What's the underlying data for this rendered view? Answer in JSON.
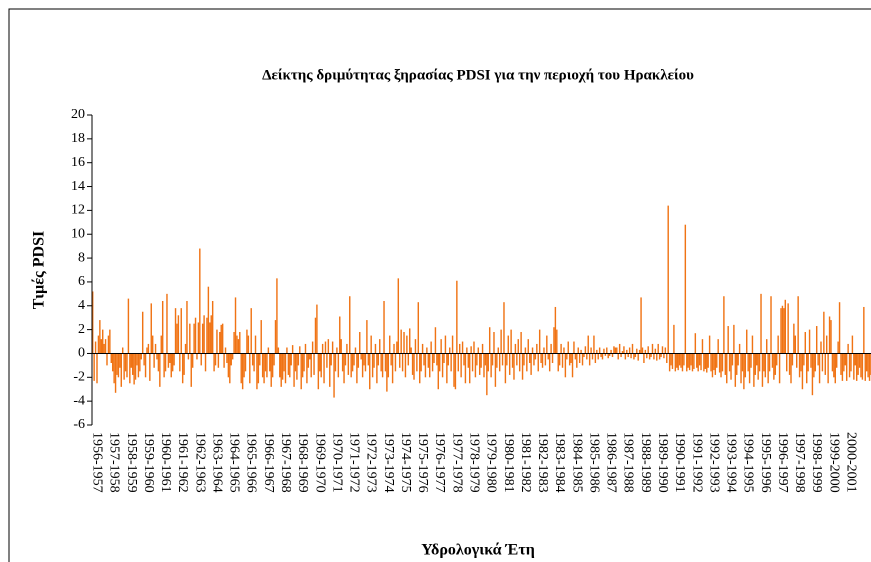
{
  "chart_data": {
    "type": "bar",
    "title": "Δείκτης δριμύτητας ξηρασίας PDSI για την περιοχή του Ηρακλείου",
    "y_label": "Τιμές PDSI",
    "x_label": "Υδρολογικά Έτη",
    "color": "#f07314",
    "ylim": [
      -6,
      20
    ],
    "yticks": [
      -6,
      -4,
      -2,
      0,
      2,
      4,
      6,
      8,
      10,
      12,
      14,
      16,
      18,
      20
    ],
    "categories": [
      "1956-1957",
      null,
      null,
      null,
      null,
      null,
      null,
      null,
      null,
      null,
      null,
      null,
      "1957-1958",
      null,
      null,
      null,
      null,
      null,
      null,
      null,
      null,
      null,
      null,
      null,
      "1958-1959",
      null,
      null,
      null,
      null,
      null,
      null,
      null,
      null,
      null,
      null,
      null,
      "1959-1960",
      null,
      null,
      null,
      null,
      null,
      null,
      null,
      null,
      null,
      null,
      null,
      "1960-1961",
      null,
      null,
      null,
      null,
      null,
      null,
      null,
      null,
      null,
      null,
      null,
      "1961-1962",
      null,
      null,
      null,
      null,
      null,
      null,
      null,
      null,
      null,
      null,
      null,
      "1962-1963",
      null,
      null,
      null,
      null,
      null,
      null,
      null,
      null,
      null,
      null,
      null,
      "1963-1964",
      null,
      null,
      null,
      null,
      null,
      null,
      null,
      null,
      null,
      null,
      null,
      "1964-1965",
      null,
      null,
      null,
      null,
      null,
      null,
      null,
      null,
      null,
      null,
      null,
      "1965-1966",
      null,
      null,
      null,
      null,
      null,
      null,
      null,
      null,
      null,
      null,
      null,
      "1966-1967",
      null,
      null,
      null,
      null,
      null,
      null,
      null,
      null,
      null,
      null,
      null,
      "1967-1968",
      null,
      null,
      null,
      null,
      null,
      null,
      null,
      null,
      null,
      null,
      null,
      "1968-1969",
      null,
      null,
      null,
      null,
      null,
      null,
      null,
      null,
      null,
      null,
      null,
      "1969-1970",
      null,
      null,
      null,
      null,
      null,
      null,
      null,
      null,
      null,
      null,
      null,
      "1970-1971",
      null,
      null,
      null,
      null,
      null,
      null,
      null,
      null,
      null,
      null,
      null,
      "1971-1972",
      null,
      null,
      null,
      null,
      null,
      null,
      null,
      null,
      null,
      null,
      null,
      "1972-1973",
      null,
      null,
      null,
      null,
      null,
      null,
      null,
      null,
      null,
      null,
      null,
      "1973-1974",
      null,
      null,
      null,
      null,
      null,
      null,
      null,
      null,
      null,
      null,
      null,
      "1974-1975",
      null,
      null,
      null,
      null,
      null,
      null,
      null,
      null,
      null,
      null,
      null,
      "1975-1976",
      null,
      null,
      null,
      null,
      null,
      null,
      null,
      null,
      null,
      null,
      null,
      "1976-1977",
      null,
      null,
      null,
      null,
      null,
      null,
      null,
      null,
      null,
      null,
      null,
      "1977-1978",
      null,
      null,
      null,
      null,
      null,
      null,
      null,
      null,
      null,
      null,
      null,
      "1978-1979",
      null,
      null,
      null,
      null,
      null,
      null,
      null,
      null,
      null,
      null,
      null,
      "1979-1980",
      null,
      null,
      null,
      null,
      null,
      null,
      null,
      null,
      null,
      null,
      null,
      "1980-1981",
      null,
      null,
      null,
      null,
      null,
      null,
      null,
      null,
      null,
      null,
      null,
      "1981-1982",
      null,
      null,
      null,
      null,
      null,
      null,
      null,
      null,
      null,
      null,
      null,
      "1982-1983",
      null,
      null,
      null,
      null,
      null,
      null,
      null,
      null,
      null,
      null,
      null,
      "1983-1984",
      null,
      null,
      null,
      null,
      null,
      null,
      null,
      null,
      null,
      null,
      null,
      "1984-1985",
      null,
      null,
      null,
      null,
      null,
      null,
      null,
      null,
      null,
      null,
      null,
      "1985-1986",
      null,
      null,
      null,
      null,
      null,
      null,
      null,
      null,
      null,
      null,
      null,
      "1986-1987",
      null,
      null,
      null,
      null,
      null,
      null,
      null,
      null,
      null,
      null,
      null,
      "1987-1988",
      null,
      null,
      null,
      null,
      null,
      null,
      null,
      null,
      null,
      null,
      null,
      "1988-1989",
      null,
      null,
      null,
      null,
      null,
      null,
      null,
      null,
      null,
      null,
      null,
      "1989-1990",
      null,
      null,
      null,
      null,
      null,
      null,
      null,
      null,
      null,
      null,
      null,
      "1990-1991",
      null,
      null,
      null,
      null,
      null,
      null,
      null,
      null,
      null,
      null,
      null,
      "1991-1992",
      null,
      null,
      null,
      null,
      null,
      null,
      null,
      null,
      null,
      null,
      null,
      "1992-1993",
      null,
      null,
      null,
      null,
      null,
      null,
      null,
      null,
      null,
      null,
      null,
      "1993-1994",
      null,
      null,
      null,
      null,
      null,
      null,
      null,
      null,
      null,
      null,
      null,
      "1994-1995",
      null,
      null,
      null,
      null,
      null,
      null,
      null,
      null,
      null,
      null,
      null,
      "1995-1996",
      null,
      null,
      null,
      null,
      null,
      null,
      null,
      null,
      null,
      null,
      null,
      "1996-1997",
      null,
      null,
      null,
      null,
      null,
      null,
      null,
      null,
      null,
      null,
      null,
      "1997-1998",
      null,
      null,
      null,
      null,
      null,
      null,
      null,
      null,
      null,
      null,
      null,
      "1998-1999",
      null,
      null,
      null,
      null,
      null,
      null,
      null,
      null,
      null,
      null,
      null,
      "1999-2000",
      null,
      null,
      null,
      null,
      null,
      null,
      null,
      null,
      null,
      null,
      null,
      "2000-2001",
      null,
      null,
      null,
      null,
      null,
      null,
      null,
      null,
      null,
      null,
      null,
      null,
      null,
      null,
      null,
      null,
      null
    ],
    "values": [
      5.2,
      -2.3,
      1,
      -2.5,
      1.5,
      2.8,
      1.2,
      2,
      0.8,
      1.2,
      -1,
      1.5,
      2,
      -0.8,
      -1.5,
      -2.5,
      -3.3,
      -1.8,
      -2,
      -1.2,
      -2.8,
      0.5,
      -2.2,
      -1.5,
      -2,
      4.6,
      -2.5,
      -1.2,
      -1.8,
      -2.6,
      -2.2,
      -1,
      -2,
      -1.5,
      -0.5,
      3.5,
      -1,
      -2,
      0.5,
      0.8,
      -2.3,
      4.2,
      1.5,
      -1.2,
      0.8,
      -0.5,
      -1.5,
      -2.8,
      1.5,
      4.4,
      -2,
      -1.5,
      5,
      -1.2,
      -0.8,
      -2,
      -1.5,
      -1,
      3.8,
      2.5,
      3.2,
      -1.5,
      3.8,
      -2.5,
      -1.8,
      0.8,
      4.4,
      -0.5,
      2.5,
      -2.8,
      -1.2,
      2.5,
      3,
      -0.5,
      2.6,
      8.8,
      -1,
      2.5,
      3.2,
      -1.5,
      3,
      5.6,
      2.6,
      3.2,
      4.4,
      -1.5,
      -1,
      2,
      -1.2,
      1.8,
      2.4,
      2.5,
      -1.2,
      0.5,
      -0.8,
      -2,
      -2.5,
      -1,
      -0.5,
      1.8,
      4.7,
      1.5,
      1.2,
      1.8,
      -2.5,
      -3,
      -2,
      -1.5,
      2,
      1.5,
      -2.5,
      3.8,
      -1,
      -1.5,
      1.5,
      -3,
      -2.5,
      -1,
      2.8,
      -2,
      -2.5,
      -1.5,
      -2,
      0.5,
      -1.5,
      -2.8,
      -2,
      -1,
      2.8,
      6.3,
      0.5,
      -2,
      -2.8,
      -2.2,
      -1.5,
      -2.5,
      0.5,
      -1.8,
      -2,
      -1,
      0.7,
      -2.8,
      -1.5,
      -2.2,
      -1,
      0.6,
      -3,
      -2,
      -1.5,
      0.8,
      -2.5,
      -1.2,
      -0.5,
      -2,
      1,
      -1.8,
      3,
      4.1,
      -3,
      -1.5,
      -2,
      0.8,
      -2.5,
      1,
      -1.2,
      1.2,
      -2.8,
      -1,
      1,
      -3.7,
      -1.5,
      0.5,
      -2,
      3.1,
      1.2,
      -1.5,
      -2.5,
      -1,
      0.8,
      -1.8,
      4.8,
      -2,
      -1.5,
      -1,
      0.5,
      -2.5,
      -1.2,
      1.8,
      -0.5,
      -2,
      -1,
      -1.5,
      2.8,
      -1,
      -3,
      1.5,
      -2,
      -1.2,
      0.8,
      -2.5,
      -1,
      1.2,
      -1.5,
      -2,
      4.4,
      -1.5,
      -3.2,
      -2,
      1.5,
      -1,
      -2.5,
      0.8,
      -1.5,
      1,
      6.3,
      -1.2,
      2,
      -1.5,
      1.8,
      -2,
      1.5,
      -1,
      2.1,
      0.5,
      -1.8,
      -2.2,
      1.2,
      -1.5,
      4.3,
      -2.5,
      -1.5,
      0.8,
      -1,
      -2,
      0.5,
      -1.2,
      -2,
      1,
      -1.5,
      -0.8,
      2.2,
      -1,
      -3,
      -1.5,
      1.2,
      -2,
      -0.8,
      1.5,
      -2.5,
      -1,
      0.5,
      -1.5,
      1.5,
      -2.8,
      -3,
      6.1,
      -1.5,
      0.8,
      -2,
      1,
      -1,
      -2.5,
      0.5,
      -1.2,
      -2.5,
      0.6,
      -1.5,
      1,
      -2,
      -1,
      0.5,
      -1.8,
      -1.2,
      0.8,
      -2,
      -1,
      -3.5,
      -1.5,
      2.2,
      -2,
      -1,
      1.8,
      -2.8,
      -1.2,
      0.5,
      -1.5,
      2,
      -1,
      4.3,
      -2.5,
      -1,
      1.5,
      -1.8,
      2,
      -1.2,
      -2.2,
      0.8,
      -1,
      1.2,
      -1.5,
      1.8,
      -2.2,
      -1,
      0.5,
      -1.5,
      1.2,
      -0.8,
      -1.8,
      0.5,
      -1,
      -0.5,
      0.8,
      -1.5,
      2,
      -0.8,
      -1.2,
      0.5,
      -1,
      1.5,
      -0.5,
      -1.5,
      0.8,
      -0.8,
      2.2,
      3.9,
      2,
      -1.5,
      -1,
      0.8,
      -1.2,
      0.5,
      -2,
      -0.5,
      1,
      -1,
      -0.8,
      -2,
      1,
      -0.5,
      -1.2,
      0.5,
      -0.8,
      0.3,
      -1,
      -0.3,
      0.6,
      -0.5,
      1.5,
      -1,
      0.5,
      -0.5,
      1.5,
      -0.8,
      0.3,
      -0.5,
      0.5,
      -0.3,
      -0.5,
      0.4,
      -0.2,
      0.5,
      -0.4,
      -0.2,
      0.3,
      -0.3,
      0.6,
      0.5,
      0.5,
      -0.5,
      0.8,
      -0.3,
      0.2,
      0.6,
      -0.5,
      0.3,
      -0.3,
      0.5,
      -0.4,
      0.8,
      -0.5,
      -0.3,
      0.4,
      -0.6,
      0.3,
      4.7,
      0.5,
      -0.8,
      0.3,
      -0.4,
      0.6,
      -0.5,
      -0.3,
      0.8,
      -0.5,
      0.4,
      -0.6,
      0.8,
      -0.5,
      -0.3,
      0.6,
      -0.4,
      0.5,
      -0.8,
      12.4,
      -1.5,
      -1,
      -1.3,
      2.4,
      -1.5,
      -1.2,
      -1.4,
      -1,
      -1.2,
      -1.5,
      -1,
      10.8,
      -1.5,
      -1.2,
      -1.4,
      -1,
      -1.5,
      -1.3,
      1.7,
      -1.2,
      -1.5,
      -1,
      -1.4,
      1.2,
      -1.5,
      -1.3,
      -1.6,
      -1.2,
      1.5,
      -1.5,
      -2,
      -1.4,
      -1.8,
      -1.2,
      1.2,
      -1.6,
      -2,
      -1.5,
      4.8,
      -1.8,
      -2.5,
      2.3,
      -1.5,
      -2.2,
      -1,
      2.4,
      -2.8,
      -1.8,
      -1,
      0.8,
      -2.5,
      -1.5,
      -3,
      -2,
      2,
      -1.5,
      -2.5,
      -1.2,
      1.5,
      -2.8,
      -1.8,
      -1,
      -2.2,
      -1.5,
      5,
      -2.8,
      -1.5,
      -2,
      1.2,
      -2.5,
      -1.5,
      4.8,
      -1.2,
      -2.2,
      -1.8,
      -1,
      1.5,
      -2.5,
      3.8,
      4,
      3.8,
      4.5,
      -1.5,
      4.2,
      -1.8,
      -2.5,
      -1,
      2.5,
      1.5,
      -1.2,
      4.8,
      -2,
      -1.5,
      -3,
      -1,
      1.8,
      -2.5,
      -1.5,
      2,
      -1.2,
      -3.5,
      -2,
      -1.5,
      2.3,
      -1,
      -2.5,
      1,
      -1.5,
      3.5,
      -1.8,
      1.5,
      -2.5,
      3.1,
      2.8,
      -1.5,
      -2,
      -2.5,
      -1.2,
      1,
      4.3,
      -1.8,
      -2.3,
      -1.5,
      -1,
      -2.3,
      0.8,
      -2,
      -1.5,
      1.5,
      -2.2,
      -1,
      -2.3,
      -1.8,
      -1.2,
      -2,
      -2.2,
      3.9,
      -2.3,
      -1.5,
      -2,
      -2.3,
      -1.8
    ]
  }
}
